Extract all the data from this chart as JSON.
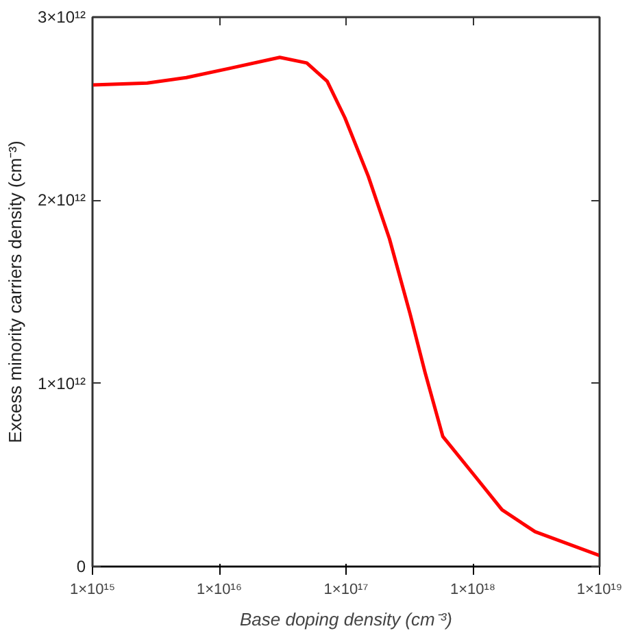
{
  "chart_data": {
    "type": "line",
    "xlabel": "Base doping density (cm⁻³)",
    "ylabel": "Excess minority carriers density (cm⁻³)",
    "log": "x",
    "xlim": [
      1000000000000000.0,
      1e+19
    ],
    "ylim": [
      0,
      3000000000000.0
    ],
    "xticks": [
      {
        "value": 1000000000000000.0,
        "label": "1×10¹⁵"
      },
      {
        "value": 1e+16,
        "label": "1×10¹⁶"
      },
      {
        "value": 1e+17,
        "label": "1×10¹⁷"
      },
      {
        "value": 1e+18,
        "label": "1×10¹⁸"
      },
      {
        "value": 1e+19,
        "label": "1×10¹⁹"
      }
    ],
    "yticks": [
      0,
      {
        "value": 1000000000000.0,
        "label": "1×10¹²"
      },
      {
        "value": 2000000000000.0,
        "label": "2×10¹²"
      },
      {
        "value": 3000000000000.0,
        "label": "3×10¹²"
      }
    ],
    "grid": false,
    "marker": "none",
    "line_style": "solid",
    "x": [
      1000000000000000.0,
      2700000000000000.0,
      5500000000000000.0,
      1.2e+16,
      3e+16,
      4.9e+16,
      7.1e+16,
      9.8e+16,
      1.5e+17,
      2.2e+17,
      3.2e+17,
      4.2e+17,
      5.8e+17,
      1.05e+18,
      1.7e+18,
      3.1e+18,
      1e+19
    ],
    "series": [
      {
        "color": "#ff0000",
        "values": [
          2630000000000.0,
          2640000000000.0,
          2670000000000.0,
          2720000000000.0,
          2780000000000.0,
          2750000000000.0,
          2650000000000.0,
          2450000000000.0,
          2130000000000.0,
          1790000000000.0,
          1380000000000.0,
          1060000000000.0,
          710000000000.0,
          490000000000.0,
          310000000000.0,
          190000000000.0,
          60000000000.0
        ]
      }
    ]
  }
}
